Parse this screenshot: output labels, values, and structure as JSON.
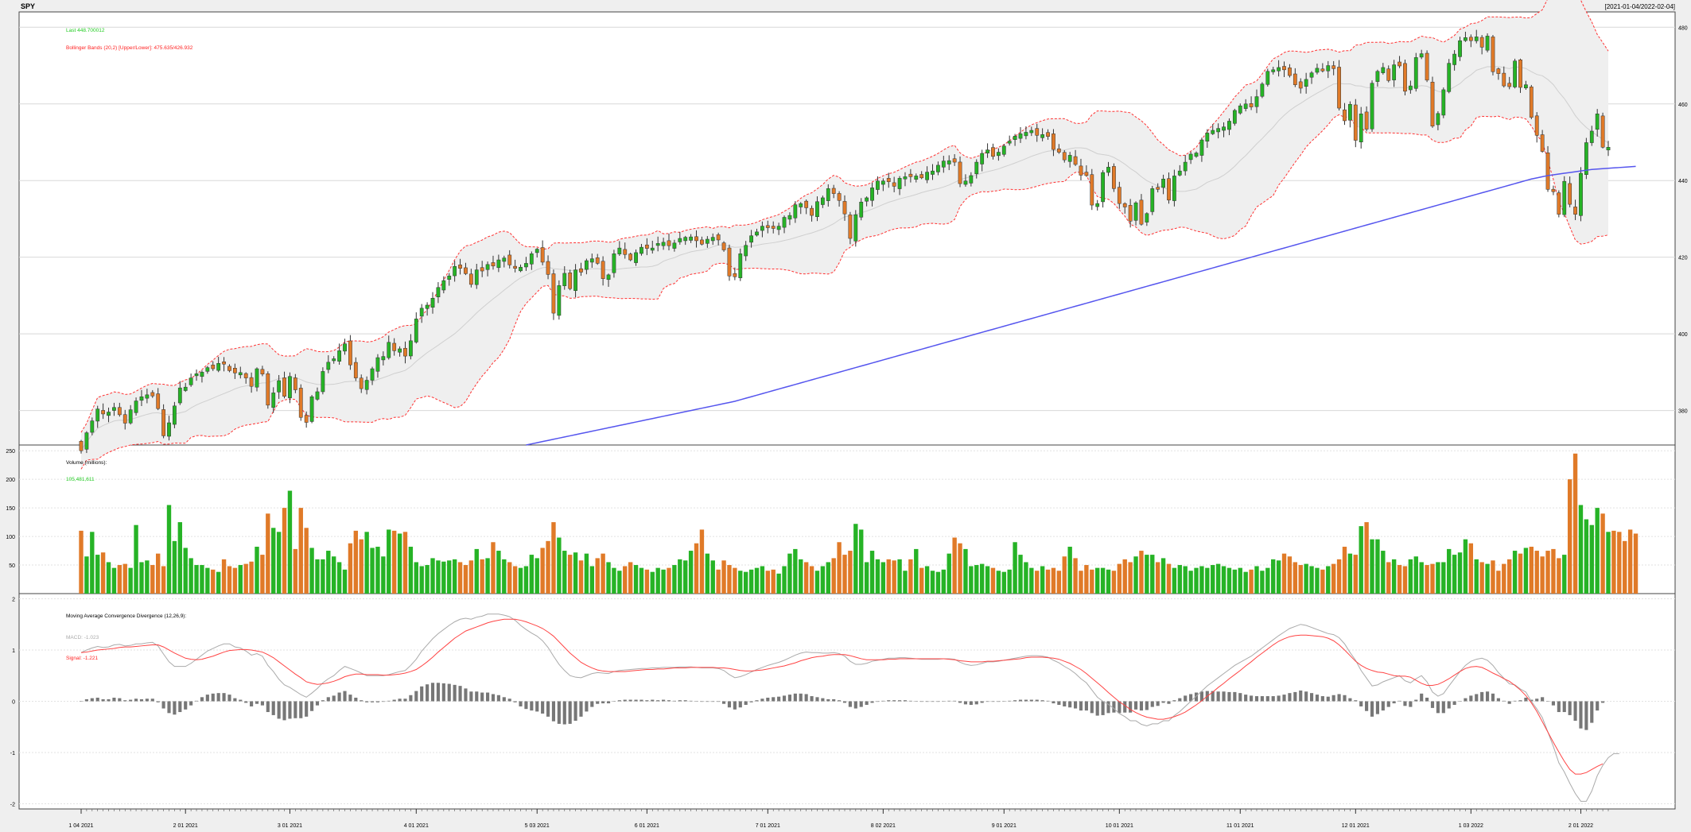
{
  "header": {
    "symbol": "SPY",
    "date_range": "[2021-01-04/2022-02-04]"
  },
  "colors": {
    "up": "#26b326",
    "down": "#e07a28",
    "band": "#ff3333",
    "sma200": "#5555ee",
    "macd_line": "#aaaaaa",
    "signal_line": "#ff4444",
    "hist": "#777777",
    "last_text": "#22cc22",
    "band_fill": "#efefef"
  },
  "price_panel": {
    "last_label": "Last 448.700012",
    "bbands_label": "Bollinger Bands (20,2) [Upper/Lower]: 475.635/426.932",
    "y_ticks": [
      "380",
      "400",
      "420",
      "440",
      "460",
      "480"
    ]
  },
  "volume_panel": {
    "title": "Volume (millions):",
    "value": "105,481,611",
    "y_ticks": [
      "50",
      "100",
      "150",
      "200",
      "250"
    ]
  },
  "macd_panel": {
    "title": "Moving Average Convergence Divergence (12,26,9):",
    "macd_label": "MACD: -1.023",
    "signal_label": "Signal: -1.221",
    "y_ticks": [
      "-2",
      "-1",
      "0",
      "1",
      "2"
    ]
  },
  "x_axis": {
    "labels": [
      "1 04 2021",
      "2 01 2021",
      "3 01 2021",
      "4 01 2021",
      "5 03 2021",
      "6 01 2021",
      "7 01 2021",
      "8 02 2021",
      "9 01 2021",
      "10 01 2021",
      "11 01 2021",
      "12 01 2021",
      "1 03 2022",
      "2 01 2022"
    ]
  },
  "chart_data": {
    "type": "candlestick",
    "symbol": "SPY",
    "range": "2021-01-04 to 2022-02-04",
    "price_ylim": [
      371,
      484
    ],
    "volume_ylim": [
      0,
      260
    ],
    "macd_ylim": [
      -2.1,
      2.1
    ],
    "month_tick_bar_index": [
      0,
      19,
      38,
      61,
      83,
      103,
      125,
      146,
      168,
      189,
      211,
      232,
      253,
      273
    ],
    "close": [
      369.5,
      374.2,
      377.3,
      380.4,
      379.1,
      379.6,
      380.8,
      378.9,
      376.7,
      380.2,
      382.5,
      383.6,
      384.1,
      383.8,
      380.5,
      373.4,
      376.8,
      381.2,
      385.9,
      386.1,
      388.5,
      389.6,
      390.0,
      391.2,
      390.9,
      392.3,
      392.1,
      390.4,
      389.8,
      389.9,
      388.5,
      386.3,
      390.9,
      389.5,
      381.4,
      384.6,
      387.8,
      383.7,
      388.9,
      385.4,
      378.2,
      376.9,
      383.6,
      384.9,
      390.2,
      392.6,
      393.5,
      395.6,
      397.4,
      391.9,
      388.5,
      385.7,
      387.9,
      390.9,
      393.8,
      394.1,
      397.8,
      395.6,
      396.1,
      394.2,
      398.2,
      403.9,
      406.7,
      407.5,
      409.3,
      412.1,
      413.9,
      415.1,
      417.6,
      417.1,
      415.7,
      412.9,
      416.7,
      416.4,
      418.1,
      417.7,
      419.3,
      419.8,
      418.0,
      417.1,
      417.4,
      418.4,
      420.9,
      422.1,
      418.7,
      415.5,
      405.4,
      412.6,
      415.8,
      411.8,
      416.7,
      416.1,
      419.1,
      419.6,
      418.4,
      414.4,
      415.4,
      420.9,
      422.4,
      420.7,
      419.3,
      421.2,
      422.6,
      422.3,
      422.4,
      423.6,
      423.9,
      423.0,
      423.7,
      424.9,
      425.2,
      425.3,
      424.3,
      423.4,
      424.7,
      425.2,
      424.5,
      421.9,
      415.1,
      414.9,
      420.9,
      423.1,
      425.6,
      426.6,
      428.1,
      427.7,
      427.5,
      428.1,
      430.4,
      430.9,
      433.7,
      434.0,
      432.9,
      430.9,
      434.5,
      435.5,
      437.9,
      436.6,
      434.8,
      431.3,
      424.9,
      431.1,
      434.4,
      435.5,
      438.1,
      439.9,
      439.9,
      439.7,
      438.5,
      440.6,
      441.0,
      441.0,
      441.2,
      440.7,
      442.2,
      442.5,
      444.0,
      445.1,
      445.2,
      444.8,
      439.2,
      439.9,
      441.3,
      444.8,
      447.1,
      448.0,
      446.3,
      447.4,
      449.0,
      450.3,
      451.6,
      452.2,
      452.6,
      453.1,
      451.8,
      452.0,
      451.5,
      448.1,
      447.4,
      445.4,
      446.6,
      444.2,
      441.4,
      441.3,
      433.6,
      434.0,
      442.1,
      443.5,
      437.9,
      434.0,
      433.1,
      429.4,
      434.2,
      428.6,
      431.4,
      437.9,
      437.7,
      440.4,
      434.9,
      441.2,
      442.5,
      444.8,
      446.9,
      447.2,
      450.6,
      452.4,
      453.1,
      453.6,
      454.0,
      455.5,
      458.3,
      459.5,
      460.0,
      459.2,
      461.9,
      465.2,
      468.5,
      468.9,
      469.5,
      468.9,
      467.4,
      465.0,
      464.1,
      466.4,
      468.1,
      469.3,
      468.6,
      470.0,
      469.2,
      458.9,
      455.6,
      459.9,
      450.5,
      457.4,
      453.4,
      465.4,
      468.5,
      469.5,
      466.1,
      470.2,
      469.9,
      463.3,
      464.7,
      472.1,
      473.1,
      466.2,
      454.2,
      457.5,
      463.7,
      470.6,
      473.0,
      476.5,
      477.3,
      476.5,
      477.5,
      474.8,
      477.7,
      468.4,
      467.9,
      464.7,
      464.5,
      471.2,
      464.3,
      465.0,
      456.5,
      451.8,
      447.6,
      437.7,
      437.1,
      431.2,
      439.8,
      433.8,
      431.2,
      441.9,
      449.9,
      452.9,
      457.4,
      448.7,
      448.7
    ],
    "sma200": [
      null,
      null,
      null,
      null,
      null,
      null,
      null,
      null,
      null,
      null,
      null,
      null,
      null,
      null,
      null,
      null,
      null,
      null,
      null,
      null,
      null,
      null,
      null,
      null,
      null,
      null,
      null,
      null,
      null,
      null,
      null,
      null,
      null,
      null,
      null,
      null,
      null,
      null,
      null,
      null,
      null,
      null,
      null,
      null,
      null,
      null,
      null,
      null,
      null,
      null,
      null,
      null,
      null,
      null,
      null,
      null,
      null,
      null,
      null,
      null,
      null,
      null,
      null,
      null,
      null,
      null,
      null,
      null,
      null,
      null,
      null,
      null,
      null,
      null,
      null,
      null,
      null,
      null,
      null,
      null,
      null,
      371.0,
      371.3,
      371.6,
      371.9,
      372.2,
      372.5,
      372.8,
      373.1,
      373.4,
      373.7,
      374.0,
      374.3,
      374.6,
      374.9,
      375.2,
      375.5,
      375.8,
      376.1,
      376.4,
      376.7,
      377.0,
      377.3,
      377.6,
      377.9,
      378.2,
      378.5,
      378.8,
      379.1,
      379.4,
      379.7,
      380.0,
      380.3,
      380.6,
      380.9,
      381.2,
      381.5,
      381.8,
      382.1,
      382.4,
      382.8,
      383.2,
      383.6,
      384.0,
      384.4,
      384.8,
      385.2,
      385.6,
      386.0,
      386.4,
      386.8,
      387.2,
      387.6,
      388.0,
      388.4,
      388.8,
      389.2,
      389.6,
      390.0,
      390.4,
      390.8,
      391.2,
      391.6,
      392.0,
      392.4,
      392.8,
      393.2,
      393.6,
      394.0,
      394.4,
      394.8,
      395.2,
      395.6,
      396.0,
      396.4,
      396.8,
      397.2,
      397.6,
      398.0,
      398.4,
      398.8,
      399.2,
      399.6,
      400.0,
      400.4,
      400.8,
      401.2,
      401.6,
      402.0,
      402.4,
      402.8,
      403.2,
      403.6,
      404.0,
      404.4,
      404.8,
      405.2,
      405.6,
      406.0,
      406.4,
      406.8,
      407.2,
      407.6,
      408.0,
      408.4,
      408.8,
      409.2,
      409.6,
      410.0,
      410.4,
      410.8,
      411.2,
      411.6,
      412.0,
      412.4,
      412.8,
      413.2,
      413.6,
      414.0,
      414.4,
      414.8,
      415.2,
      415.6,
      416.0,
      416.4,
      416.8,
      417.2,
      417.6,
      418.0,
      418.4,
      418.8,
      419.2,
      419.6,
      420.0,
      420.4,
      420.8,
      421.2,
      421.6,
      422.0,
      422.4,
      422.8,
      423.2,
      423.6,
      424.0,
      424.4,
      424.8,
      425.2,
      425.6,
      426.0,
      426.4,
      426.8,
      427.2,
      427.6,
      428.0,
      428.4,
      428.8,
      429.2,
      429.6,
      430.0,
      430.4,
      430.8,
      431.2,
      431.6,
      432.0,
      432.4,
      432.8,
      433.2,
      433.6,
      434.0,
      434.4,
      434.8,
      435.2,
      435.6,
      436.0,
      436.4,
      436.8,
      437.2,
      437.6,
      438.0,
      438.4,
      438.8,
      439.2,
      439.6,
      440.0,
      440.4,
      440.7,
      441.0,
      441.3,
      441.5,
      441.7,
      441.9,
      442.1,
      442.3,
      442.5,
      442.7,
      442.9,
      443.0,
      443.1,
      443.2,
      443.3,
      443.4,
      443.5,
      443.6,
      443.7
    ],
    "volume_millions": [
      110,
      65,
      108,
      68,
      72,
      55,
      45,
      50,
      52,
      45,
      120,
      55,
      58,
      50,
      70,
      48,
      155,
      92,
      125,
      80,
      62,
      50,
      50,
      45,
      42,
      38,
      60,
      48,
      45,
      50,
      52,
      56,
      82,
      68,
      140,
      115,
      108,
      150,
      180,
      78,
      150,
      115,
      80,
      60,
      60,
      75,
      65,
      55,
      42,
      88,
      110,
      95,
      108,
      80,
      82,
      65,
      112,
      110,
      105,
      108,
      82,
      55,
      48,
      50,
      62,
      58,
      56,
      58,
      60,
      55,
      50,
      58,
      78,
      60,
      62,
      90,
      75,
      60,
      55,
      48,
      45,
      48,
      68,
      62,
      80,
      92,
      125,
      98,
      75,
      68,
      72,
      58,
      70,
      48,
      62,
      70,
      55,
      45,
      40,
      48,
      55,
      50,
      45,
      42,
      38,
      45,
      42,
      45,
      50,
      60,
      58,
      75,
      88,
      112,
      70,
      58,
      42,
      58,
      50,
      45,
      40,
      38,
      42,
      45,
      48,
      40,
      42,
      35,
      48,
      70,
      78,
      60,
      55,
      48,
      40,
      48,
      55,
      62,
      90,
      68,
      75,
      122,
      112,
      55,
      75,
      60,
      55,
      60,
      58,
      60,
      40,
      60,
      78,
      45,
      48,
      40,
      38,
      42,
      70,
      98,
      88,
      78,
      48,
      50,
      52,
      48,
      45,
      40,
      38,
      42,
      90,
      68,
      55,
      45,
      40,
      48,
      42,
      45,
      40,
      65,
      82,
      62,
      40,
      50,
      42,
      45,
      45,
      42,
      40,
      52,
      60,
      55,
      65,
      75,
      68,
      68,
      55,
      62,
      52,
      45,
      50,
      48,
      40,
      45,
      48,
      45,
      50,
      52,
      48,
      45,
      42,
      45,
      38,
      42,
      48,
      40,
      45,
      60,
      58,
      70,
      65,
      55,
      50,
      52,
      48,
      45,
      42,
      48,
      52,
      60,
      82,
      70,
      68,
      118,
      125,
      95,
      95,
      75,
      55,
      60,
      50,
      48,
      60,
      65,
      55,
      50,
      52,
      55,
      55,
      78,
      68,
      72,
      95,
      88,
      60,
      55,
      52,
      58,
      40,
      52,
      60,
      75,
      70,
      80,
      82,
      75,
      65,
      75,
      78,
      62,
      68,
      200,
      245,
      155,
      130,
      120,
      150,
      140,
      108,
      110,
      108,
      92,
      112,
      105
    ],
    "macd": [
      0.95,
      1.0,
      1.04,
      1.07,
      1.05,
      1.06,
      1.1,
      1.11,
      1.08,
      1.09,
      1.12,
      1.12,
      1.14,
      1.15,
      1.08,
      0.92,
      0.77,
      0.68,
      0.68,
      0.68,
      0.74,
      0.82,
      0.9,
      0.98,
      1.03,
      1.08,
      1.12,
      1.12,
      1.06,
      1.04,
      0.98,
      0.9,
      0.93,
      0.88,
      0.7,
      0.58,
      0.43,
      0.32,
      0.27,
      0.2,
      0.13,
      0.08,
      0.16,
      0.25,
      0.36,
      0.44,
      0.5,
      0.6,
      0.68,
      0.64,
      0.6,
      0.55,
      0.5,
      0.5,
      0.5,
      0.5,
      0.52,
      0.55,
      0.58,
      0.6,
      0.7,
      0.82,
      0.98,
      1.1,
      1.22,
      1.32,
      1.4,
      1.48,
      1.55,
      1.6,
      1.62,
      1.6,
      1.64,
      1.66,
      1.7,
      1.7,
      1.7,
      1.68,
      1.65,
      1.58,
      1.48,
      1.4,
      1.33,
      1.27,
      1.18,
      1.05,
      0.88,
      0.72,
      0.6,
      0.5,
      0.47,
      0.46,
      0.5,
      0.54,
      0.56,
      0.55,
      0.54,
      0.58,
      0.6,
      0.61,
      0.62,
      0.63,
      0.64,
      0.64,
      0.65,
      0.65,
      0.66,
      0.66,
      0.66,
      0.67,
      0.67,
      0.67,
      0.66,
      0.65,
      0.65,
      0.65,
      0.64,
      0.6,
      0.52,
      0.46,
      0.48,
      0.52,
      0.57,
      0.62,
      0.66,
      0.7,
      0.73,
      0.76,
      0.8,
      0.85,
      0.9,
      0.94,
      0.96,
      0.95,
      0.95,
      0.94,
      0.94,
      0.95,
      0.93,
      0.88,
      0.78,
      0.72,
      0.72,
      0.74,
      0.78,
      0.8,
      0.82,
      0.84,
      0.84,
      0.85,
      0.85,
      0.84,
      0.83,
      0.82,
      0.82,
      0.82,
      0.82,
      0.83,
      0.83,
      0.82,
      0.76,
      0.72,
      0.7,
      0.71,
      0.74,
      0.77,
      0.77,
      0.78,
      0.8,
      0.82,
      0.84,
      0.86,
      0.88,
      0.89,
      0.89,
      0.88,
      0.86,
      0.8,
      0.75,
      0.68,
      0.62,
      0.54,
      0.44,
      0.36,
      0.22,
      0.08,
      0.0,
      -0.06,
      -0.14,
      -0.24,
      -0.3,
      -0.38,
      -0.38,
      -0.45,
      -0.48,
      -0.44,
      -0.44,
      -0.38,
      -0.38,
      -0.28,
      -0.2,
      -0.1,
      0.0,
      0.1,
      0.2,
      0.3,
      0.38,
      0.46,
      0.54,
      0.62,
      0.7,
      0.76,
      0.82,
      0.88,
      0.96,
      1.04,
      1.12,
      1.2,
      1.28,
      1.35,
      1.42,
      1.46,
      1.5,
      1.48,
      1.44,
      1.4,
      1.36,
      1.32,
      1.3,
      1.24,
      1.12,
      0.95,
      0.8,
      0.6,
      0.45,
      0.3,
      0.32,
      0.38,
      0.42,
      0.46,
      0.5,
      0.4,
      0.36,
      0.44,
      0.5,
      0.38,
      0.18,
      0.1,
      0.15,
      0.3,
      0.44,
      0.58,
      0.7,
      0.78,
      0.82,
      0.84,
      0.8,
      0.7,
      0.56,
      0.45,
      0.34,
      0.32,
      0.24,
      0.18,
      0.0,
      -0.15,
      -0.32,
      -0.6,
      -0.88,
      -1.2,
      -1.38,
      -1.6,
      -1.8,
      -1.95,
      -1.95,
      -1.75,
      -1.45,
      -1.25,
      -1.1,
      -1.02,
      -1.02
    ],
    "signal": [
      0.95,
      0.96,
      0.98,
      1.0,
      1.01,
      1.02,
      1.03,
      1.05,
      1.06,
      1.06,
      1.07,
      1.08,
      1.09,
      1.1,
      1.1,
      1.06,
      1.0,
      0.94,
      0.89,
      0.84,
      0.82,
      0.81,
      0.82,
      0.85,
      0.88,
      0.92,
      0.96,
      0.99,
      1.0,
      1.01,
      1.01,
      1.0,
      0.98,
      0.96,
      0.91,
      0.85,
      0.77,
      0.69,
      0.61,
      0.53,
      0.46,
      0.38,
      0.35,
      0.33,
      0.34,
      0.36,
      0.39,
      0.43,
      0.48,
      0.51,
      0.53,
      0.53,
      0.52,
      0.52,
      0.52,
      0.51,
      0.51,
      0.52,
      0.53,
      0.55,
      0.58,
      0.62,
      0.69,
      0.77,
      0.86,
      0.96,
      1.05,
      1.14,
      1.23,
      1.3,
      1.37,
      1.41,
      1.45,
      1.49,
      1.53,
      1.56,
      1.58,
      1.6,
      1.6,
      1.6,
      1.58,
      1.55,
      1.51,
      1.47,
      1.42,
      1.35,
      1.27,
      1.16,
      1.05,
      0.94,
      0.85,
      0.76,
      0.7,
      0.65,
      0.61,
      0.59,
      0.58,
      0.58,
      0.58,
      0.58,
      0.59,
      0.6,
      0.61,
      0.62,
      0.62,
      0.63,
      0.63,
      0.64,
      0.65,
      0.65,
      0.65,
      0.66,
      0.66,
      0.66,
      0.66,
      0.66,
      0.65,
      0.65,
      0.64,
      0.62,
      0.6,
      0.59,
      0.59,
      0.6,
      0.61,
      0.63,
      0.65,
      0.67,
      0.69,
      0.72,
      0.75,
      0.79,
      0.82,
      0.85,
      0.87,
      0.88,
      0.9,
      0.91,
      0.91,
      0.91,
      0.89,
      0.86,
      0.83,
      0.81,
      0.81,
      0.81,
      0.81,
      0.82,
      0.82,
      0.83,
      0.83,
      0.83,
      0.83,
      0.83,
      0.83,
      0.83,
      0.83,
      0.83,
      0.82,
      0.81,
      0.79,
      0.78,
      0.77,
      0.77,
      0.77,
      0.78,
      0.78,
      0.79,
      0.8,
      0.81,
      0.82,
      0.83,
      0.85,
      0.86,
      0.86,
      0.86,
      0.85,
      0.84,
      0.82,
      0.78,
      0.74,
      0.68,
      0.62,
      0.54,
      0.45,
      0.36,
      0.27,
      0.17,
      0.08,
      -0.01,
      -0.08,
      -0.16,
      -0.22,
      -0.27,
      -0.31,
      -0.33,
      -0.35,
      -0.35,
      -0.33,
      -0.3,
      -0.26,
      -0.21,
      -0.14,
      -0.07,
      0.01,
      0.1,
      0.18,
      0.27,
      0.35,
      0.44,
      0.52,
      0.6,
      0.69,
      0.77,
      0.86,
      0.94,
      1.02,
      1.1,
      1.17,
      1.22,
      1.26,
      1.28,
      1.29,
      1.29,
      1.28,
      1.27,
      1.26,
      1.23,
      1.18,
      1.1,
      1.0,
      0.89,
      0.78,
      0.7,
      0.64,
      0.6,
      0.57,
      0.56,
      0.53,
      0.5,
      0.49,
      0.49,
      0.47,
      0.41,
      0.35,
      0.31,
      0.31,
      0.33,
      0.38,
      0.44,
      0.51,
      0.58,
      0.64,
      0.67,
      0.68,
      0.66,
      0.61,
      0.55,
      0.5,
      0.44,
      0.39,
      0.31,
      0.22,
      0.11,
      -0.03,
      -0.2,
      -0.4,
      -0.6,
      -0.8,
      -0.99,
      -1.17,
      -1.33,
      -1.42,
      -1.42,
      -1.39,
      -1.33,
      -1.27,
      -1.22
    ]
  }
}
